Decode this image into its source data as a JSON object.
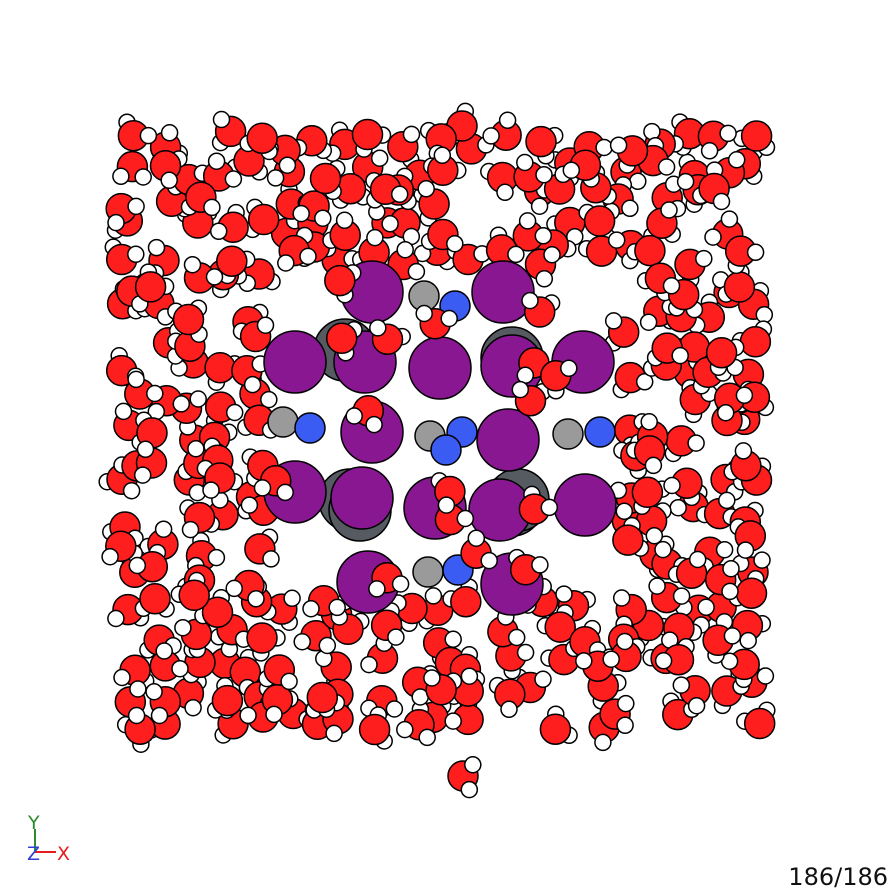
{
  "viewer": {
    "frame_counter": "186/186",
    "background": "#ffffff"
  },
  "axes": {
    "y_label": "Y",
    "z_label": "Z",
    "x_label": "X",
    "y_color": "#2e8b2e",
    "z_color": "#2f3fd6",
    "x_color": "#e81c1c"
  },
  "atom_colors": {
    "oxygen": "#ff1e1e",
    "hydrogen": "#ffffff",
    "iodine": "#8a1792",
    "lead": "#565a61",
    "nitrogen": "#3a5cf2",
    "carbon": "#9a9a9a"
  }
}
